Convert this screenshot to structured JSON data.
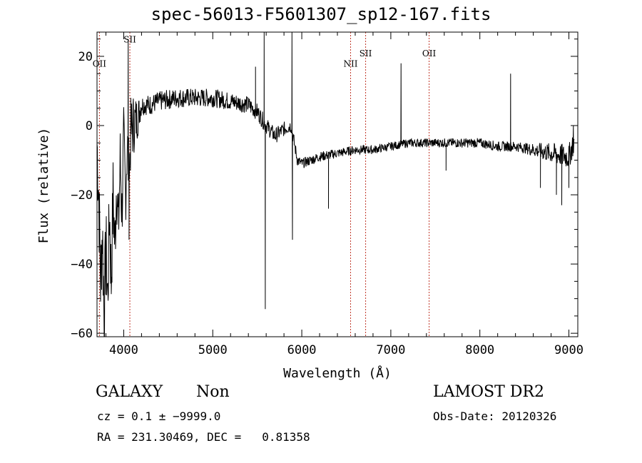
{
  "chart_data": {
    "type": "line",
    "title": "spec-56013-F5601307_sp12-167.fits",
    "xlabel": "Wavelength (Å)",
    "ylabel": "Flux (relative)",
    "xlim": [
      3700,
      9100
    ],
    "ylim": [
      -61,
      27
    ],
    "x_ticks": [
      4000,
      5000,
      6000,
      7000,
      8000,
      9000
    ],
    "y_ticks": [
      -60,
      -40,
      -20,
      0,
      20
    ],
    "x_tick_labels": [
      "4000",
      "5000",
      "6000",
      "7000",
      "8000",
      "9000"
    ],
    "y_tick_labels": [
      "−60",
      "−40",
      "−20",
      "0",
      "20"
    ],
    "grid": false,
    "legend": "none",
    "series_color": "#000000",
    "line_marker_color": "#c0392b",
    "spectrum_anchors": [
      [
        3700,
        -5
      ],
      [
        3720,
        -20
      ],
      [
        3740,
        -45
      ],
      [
        3760,
        -30
      ],
      [
        3780,
        -55
      ],
      [
        3800,
        -35
      ],
      [
        3820,
        -50
      ],
      [
        3840,
        -25
      ],
      [
        3860,
        -45
      ],
      [
        3880,
        -20
      ],
      [
        3900,
        -35
      ],
      [
        3920,
        -15
      ],
      [
        3940,
        -30
      ],
      [
        3960,
        -10
      ],
      [
        3980,
        -25
      ],
      [
        4000,
        -5
      ],
      [
        4020,
        -20
      ],
      [
        4040,
        -5
      ],
      [
        4060,
        -15
      ],
      [
        4080,
        -2
      ],
      [
        4100,
        0
      ],
      [
        4150,
        2
      ],
      [
        4200,
        6
      ],
      [
        4300,
        6
      ],
      [
        4400,
        7
      ],
      [
        4600,
        8
      ],
      [
        4800,
        8
      ],
      [
        5000,
        8
      ],
      [
        5200,
        7
      ],
      [
        5400,
        6
      ],
      [
        5500,
        4
      ],
      [
        5600,
        0
      ],
      [
        5700,
        -3
      ],
      [
        5800,
        -1
      ],
      [
        5880,
        0
      ],
      [
        5950,
        -10
      ],
      [
        6000,
        -11
      ],
      [
        6200,
        -9
      ],
      [
        6400,
        -8
      ],
      [
        6600,
        -7
      ],
      [
        6800,
        -7
      ],
      [
        7000,
        -6
      ],
      [
        7200,
        -5
      ],
      [
        7400,
        -5
      ],
      [
        7600,
        -5
      ],
      [
        7800,
        -5
      ],
      [
        8000,
        -5
      ],
      [
        8200,
        -6
      ],
      [
        8400,
        -6
      ],
      [
        8600,
        -7
      ],
      [
        8800,
        -8
      ],
      [
        9000,
        -9
      ],
      [
        9050,
        -5
      ]
    ],
    "spikes": [
      [
        4050,
        25
      ],
      [
        4060,
        -33
      ],
      [
        5480,
        17
      ],
      [
        5577,
        27
      ],
      [
        5590,
        -53
      ],
      [
        5890,
        27
      ],
      [
        5895,
        -33
      ],
      [
        6300,
        -24
      ],
      [
        7115,
        18
      ],
      [
        7620,
        -13
      ],
      [
        8345,
        15
      ],
      [
        8680,
        -18
      ],
      [
        8860,
        -20
      ],
      [
        8920,
        -23
      ],
      [
        9000,
        -18
      ],
      [
        9050,
        0
      ]
    ],
    "noise_amplitude": [
      [
        3700,
        14
      ],
      [
        4100,
        10
      ],
      [
        4200,
        3
      ],
      [
        5500,
        2.5
      ],
      [
        5900,
        2
      ],
      [
        6000,
        1.5
      ],
      [
        7000,
        1.2
      ],
      [
        8500,
        1.5
      ],
      [
        8800,
        3
      ],
      [
        9100,
        4
      ]
    ],
    "line_markers": [
      {
        "label": "OII",
        "wavelength": 3727,
        "label_level": 17
      },
      {
        "label": "SII",
        "wavelength": 4069,
        "label_level": 24
      },
      {
        "label": "NII",
        "wavelength": 6548,
        "label_level": 17
      },
      {
        "label": "SII",
        "wavelength": 6717,
        "label_level": 20
      },
      {
        "label": "OII",
        "wavelength": 7430,
        "label_level": 20
      }
    ]
  },
  "info": {
    "object_class": "GALAXY",
    "subclass": "Non",
    "redshift_line": "cz = 0.1 ± −9999.0",
    "coords_line": "RA = 231.30469, DEC =   0.81358",
    "survey": "LAMOST DR2",
    "obs_date": "Obs-Date: 20120326"
  }
}
